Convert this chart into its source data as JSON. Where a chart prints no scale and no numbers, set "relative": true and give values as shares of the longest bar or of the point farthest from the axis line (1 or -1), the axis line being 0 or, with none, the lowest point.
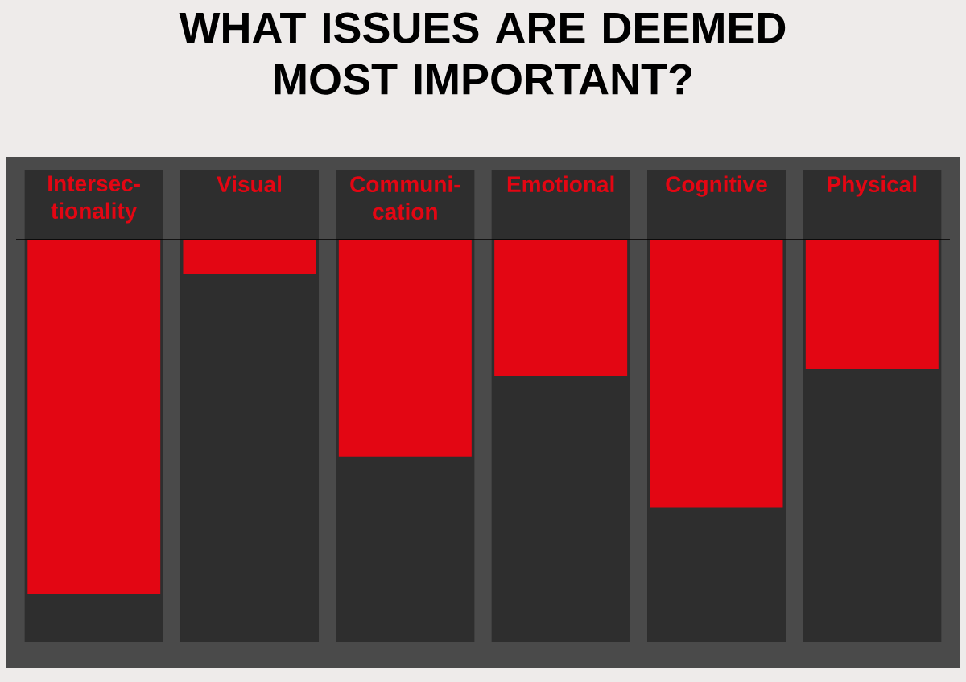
{
  "chart_data": {
    "type": "bar",
    "title": "WHAT ISSUES ARE DEEMED MOST IMPORTANT?",
    "categories": [
      "Intersec-tionality",
      "Visual",
      "Communi-cation",
      "Emotional",
      "Cognitive",
      "Physical"
    ],
    "values": [
      -1,
      -0.098,
      -0.613,
      -0.385,
      -0.758,
      -0.366
    ],
    "color": "#e30613",
    "relative": true
  }
}
